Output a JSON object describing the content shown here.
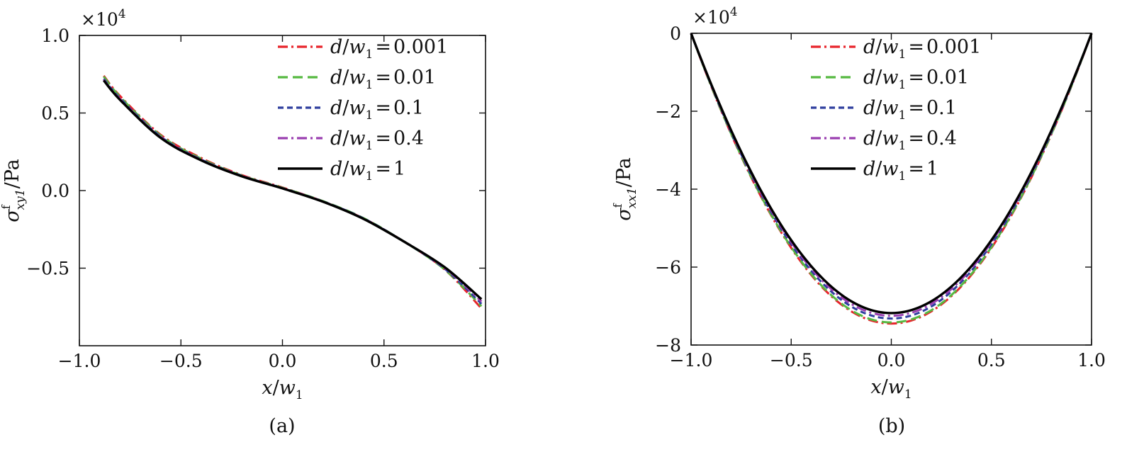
{
  "chart_data": [
    {
      "type": "line",
      "panel_label": "(a)",
      "multiplier": {
        "base": "×10",
        "exp": "4"
      },
      "xlabel": {
        "var": "x",
        "slash": "/",
        "sym": "w",
        "sub": "1"
      },
      "ylabel": {
        "sym": "σ",
        "sup": "f",
        "sub": "xy1",
        "unit": "/Pa"
      },
      "xlim": [
        -1.0,
        1.0
      ],
      "ylim": [
        -1.0,
        1.0
      ],
      "xticks": [
        -1.0,
        -0.5,
        0.0,
        0.5,
        1.0
      ],
      "xtick_labels": [
        "−1.0",
        "−0.5",
        "0.0",
        "0.5",
        "1.0"
      ],
      "yticks": [
        -0.5,
        0.0,
        0.5,
        1.0
      ],
      "ytick_labels": [
        "−0.5",
        "0.0",
        "0.5",
        "1.0"
      ],
      "legend_position": "top-right",
      "series": [
        {
          "name": "0.001",
          "color": "#e8252c",
          "dash": "dashdot",
          "x": [
            -0.88,
            -0.8,
            -0.6,
            -0.4,
            -0.2,
            0.0,
            0.2,
            0.4,
            0.6,
            0.8,
            0.98
          ],
          "y": [
            0.74,
            0.61,
            0.36,
            0.21,
            0.1,
            0.02,
            -0.07,
            -0.18,
            -0.33,
            -0.51,
            -0.76
          ]
        },
        {
          "name": "0.01",
          "color": "#56b941",
          "dash": "dash",
          "x": [
            -0.88,
            -0.8,
            -0.6,
            -0.4,
            -0.2,
            0.0,
            0.2,
            0.4,
            0.6,
            0.8,
            0.98
          ],
          "y": [
            0.735,
            0.605,
            0.355,
            0.205,
            0.097,
            0.018,
            -0.068,
            -0.178,
            -0.33,
            -0.51,
            -0.745
          ]
        },
        {
          "name": "0.1",
          "color": "#2e3e9e",
          "dash": "shortdash",
          "x": [
            -0.88,
            -0.8,
            -0.6,
            -0.4,
            -0.2,
            0.0,
            0.2,
            0.4,
            0.6,
            0.8,
            0.98
          ],
          "y": [
            0.72,
            0.595,
            0.348,
            0.2,
            0.095,
            0.016,
            -0.07,
            -0.18,
            -0.33,
            -0.505,
            -0.73
          ]
        },
        {
          "name": "0.4",
          "color": "#9a3fb0",
          "dash": "dashdot",
          "x": [
            -0.88,
            -0.8,
            -0.6,
            -0.4,
            -0.2,
            0.0,
            0.2,
            0.4,
            0.6,
            0.8,
            0.98
          ],
          "y": [
            0.715,
            0.59,
            0.345,
            0.198,
            0.094,
            0.015,
            -0.071,
            -0.182,
            -0.33,
            -0.5,
            -0.715
          ]
        },
        {
          "name": "1",
          "color": "#000000",
          "dash": "solid",
          "x": [
            -0.88,
            -0.8,
            -0.6,
            -0.4,
            -0.2,
            0.0,
            0.2,
            0.4,
            0.6,
            0.8,
            0.98
          ],
          "y": [
            0.71,
            0.585,
            0.34,
            0.195,
            0.092,
            0.014,
            -0.072,
            -0.183,
            -0.33,
            -0.495,
            -0.7
          ]
        }
      ]
    },
    {
      "type": "line",
      "panel_label": "(b)",
      "multiplier": {
        "base": "×10",
        "exp": "4"
      },
      "xlabel": {
        "var": "x",
        "slash": "/",
        "sym": "w",
        "sub": "1"
      },
      "ylabel": {
        "sym": "σ",
        "sup": "f",
        "sub": "xx1",
        "unit": "/Pa"
      },
      "xlim": [
        -1.0,
        1.0
      ],
      "ylim": [
        -8.0,
        0.0
      ],
      "xticks": [
        -1.0,
        -0.5,
        0.0,
        0.5,
        1.0
      ],
      "xtick_labels": [
        "−1.0",
        "−0.5",
        "0.0",
        "0.5",
        "1.0"
      ],
      "yticks": [
        -8,
        -6,
        -4,
        -2,
        0
      ],
      "ytick_labels": [
        "−8",
        "−6",
        "−4",
        "−2",
        "0"
      ],
      "legend_position": "top-center",
      "series": [
        {
          "name": "0.001",
          "color": "#e8252c",
          "dash": "dashdot",
          "min_value": -7.45
        },
        {
          "name": "0.01",
          "color": "#56b941",
          "dash": "dash",
          "min_value": -7.42
        },
        {
          "name": "0.1",
          "color": "#2e3e9e",
          "dash": "shortdash",
          "min_value": -7.32
        },
        {
          "name": "0.4",
          "color": "#9a3fb0",
          "dash": "dashdot",
          "min_value": -7.25
        },
        {
          "name": "1",
          "color": "#000000",
          "dash": "solid",
          "min_value": -7.18
        }
      ]
    }
  ],
  "legend_prefix": {
    "var": "d",
    "slash": "/",
    "sym": "w",
    "sub": "1",
    "eq": "="
  }
}
